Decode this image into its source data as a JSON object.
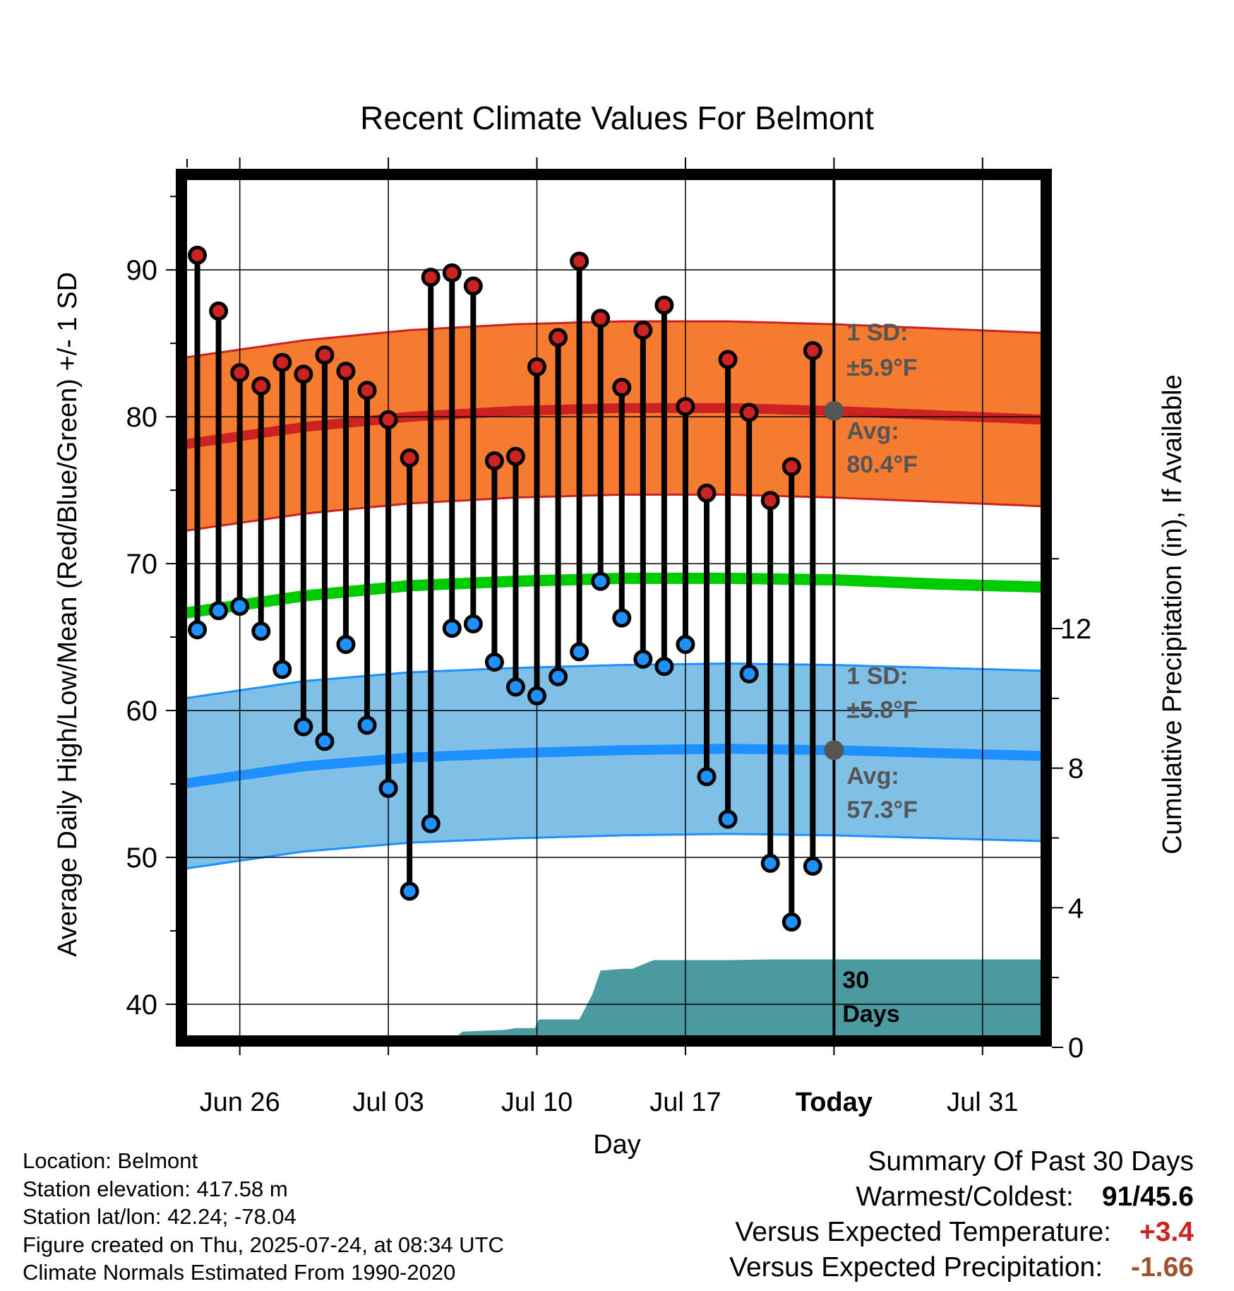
{
  "chart_data": {
    "type": "line",
    "title": "Recent Climate Values For Belmont",
    "xlabel": "Day",
    "ylabel": "Average Daily High/Low/Mean (Red/Blue/Green) +/- 1 SD",
    "y2label": "Cumulative Precipitation (in), If Available",
    "ylim": [
      37.5,
      96.5
    ],
    "y2lim": [
      0,
      12
    ],
    "yticks": [
      40,
      50,
      60,
      70,
      80,
      90
    ],
    "y2ticks": [
      0,
      4,
      8,
      12
    ],
    "grid": true,
    "xticks": [
      {
        "label": "Jun 26",
        "day": 2
      },
      {
        "label": "Jul 03",
        "day": 9
      },
      {
        "label": "Jul 10",
        "day": 16
      },
      {
        "label": "Jul 17",
        "day": 23
      },
      {
        "label": "Today",
        "day": 30
      },
      {
        "label": "Jul 31",
        "day": 37
      }
    ],
    "xlim": [
      -0.75,
      40
    ],
    "highs": [
      91.0,
      87.2,
      83.0,
      82.1,
      83.7,
      82.9,
      84.2,
      83.1,
      81.8,
      79.8,
      77.2,
      89.5,
      89.8,
      88.9,
      77.0,
      77.3,
      83.4,
      85.4,
      90.6,
      86.7,
      82.0,
      85.9,
      87.6,
      80.7,
      74.8,
      83.9,
      80.3,
      74.3,
      76.6,
      84.5
    ],
    "lows": [
      65.5,
      66.8,
      67.1,
      65.4,
      62.8,
      58.9,
      57.9,
      64.5,
      59.0,
      54.7,
      47.7,
      52.3,
      65.6,
      65.9,
      63.3,
      61.6,
      61.0,
      62.3,
      64.0,
      68.8,
      66.3,
      63.5,
      63.0,
      64.5,
      55.5,
      52.6,
      62.5,
      49.6,
      45.6,
      49.4
    ],
    "normal_high_mean": {
      "days": [
        -0.75,
        5,
        10,
        15,
        20,
        25,
        30,
        35,
        40
      ],
      "values": [
        78.1,
        79.3,
        80.0,
        80.4,
        80.6,
        80.6,
        80.4,
        80.1,
        79.8
      ]
    },
    "normal_high_sd": 5.9,
    "normal_low_mean": {
      "days": [
        -0.75,
        5,
        10,
        15,
        20,
        25,
        30,
        35,
        40
      ],
      "values": [
        55.0,
        56.2,
        56.8,
        57.1,
        57.3,
        57.4,
        57.3,
        57.1,
        56.9
      ]
    },
    "normal_low_sd": 5.8,
    "normal_mean": {
      "days": [
        -0.75,
        5,
        10,
        15,
        20,
        25,
        30,
        35,
        40
      ],
      "values": [
        66.6,
        67.8,
        68.5,
        68.8,
        69.0,
        69.0,
        68.9,
        68.6,
        68.4
      ]
    },
    "precip_cumulative": {
      "days": [
        -0.75,
        2.7,
        3.3,
        6,
        12.0,
        12.5,
        14.5,
        15.0,
        15.9,
        16.1,
        18.0,
        18.6,
        19.0,
        20.1,
        20.5,
        21.5,
        22.2,
        25.0,
        27.0,
        40
      ],
      "values": [
        0,
        0,
        0.15,
        0.2,
        0.2,
        0.45,
        0.5,
        0.55,
        0.55,
        0.8,
        0.8,
        1.5,
        2.2,
        2.25,
        2.25,
        2.5,
        2.5,
        2.5,
        2.52,
        2.52
      ]
    },
    "series": [
      {
        "name": "High",
        "color": "#cc2222"
      },
      {
        "name": "Low",
        "color": "#1e90ff"
      },
      {
        "name": "Mean",
        "color": "#00cc00"
      }
    ],
    "colors": {
      "high_band": "#f47b2f",
      "high_line": "#cc2222",
      "low_band": "#80bfe6",
      "low_line": "#1e90ff",
      "mean_line": "#00cc00",
      "precip": "#4a9aa0",
      "marker_today": "#555555",
      "annotation_text": "#555555"
    },
    "annotations": {
      "high_sd_label": "1 SD:",
      "high_sd_value": "±5.9°F",
      "high_avg_label": "Avg:",
      "high_avg_value": "80.4°F",
      "low_sd_label": "1 SD:",
      "low_sd_value": "±5.8°F",
      "low_avg_label": "Avg:",
      "low_avg_value": "57.3°F",
      "precip_label_1": "30",
      "precip_label_2": "Days",
      "today_high_avg": 80.4,
      "today_low_avg": 57.3
    }
  },
  "footer": {
    "location": "Location: Belmont",
    "elevation": "Station elevation: 417.58 m",
    "latlon": "Station lat/lon: 42.24; -78.04",
    "created": "Figure created on Thu, 2025-07-24, at 08:34 UTC",
    "normals": "Climate Normals Estimated From 1990-2020"
  },
  "summary": {
    "title": "Summary Of Past 30 Days",
    "warmest_coldest_label": "Warmest/Coldest:",
    "warmest_coldest_value": "91/45.6",
    "temp_label": "Versus Expected Temperature:",
    "temp_value": "+3.4",
    "temp_color": "#cc2222",
    "precip_label": "Versus Expected Precipitation:",
    "precip_value": "-1.66",
    "precip_color": "#a0522d"
  }
}
